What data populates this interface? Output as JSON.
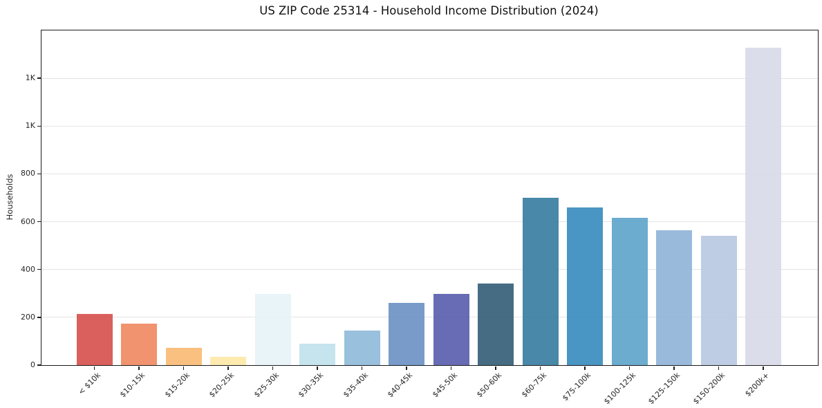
{
  "chart_data": {
    "type": "bar",
    "title": "US ZIP Code 25314 - Household Income Distribution (2024)",
    "xlabel": "",
    "ylabel": "Households",
    "categories": [
      "< $10k",
      "$10-15k",
      "$15-20k",
      "$20-25k",
      "$25-30k",
      "$30-35k",
      "$35-40k",
      "$40-45k",
      "$45-50k",
      "$50-60k",
      "$60-75k",
      "$75-100k",
      "$100-125k",
      "$125-150k",
      "$150-200k",
      "$200k+"
    ],
    "values": [
      215,
      174,
      72,
      35,
      297,
      90,
      145,
      260,
      298,
      341,
      700,
      660,
      615,
      564,
      541,
      1328
    ],
    "bar_colors": [
      "#d6534f",
      "#f08a62",
      "#fabb74",
      "#fde8a8",
      "#e6f3f7",
      "#c0e2ed",
      "#90bbda",
      "#6c93c6",
      "#5a5fae",
      "#366078",
      "#3a7ea1",
      "#3a8cbe",
      "#60a5cb",
      "#90b4d8",
      "#b8c9e2",
      "#d8dae8"
    ],
    "ylim": [
      0,
      1400
    ],
    "yticks": [
      {
        "value": 0,
        "label": "0"
      },
      {
        "value": 200,
        "label": "200"
      },
      {
        "value": 400,
        "label": "400"
      },
      {
        "value": 600,
        "label": "600"
      },
      {
        "value": 800,
        "label": "800"
      },
      {
        "value": 1000,
        "label": "1K"
      },
      {
        "value": 1200,
        "label": "1K"
      }
    ],
    "grid": "horizontal",
    "legend": "none"
  }
}
